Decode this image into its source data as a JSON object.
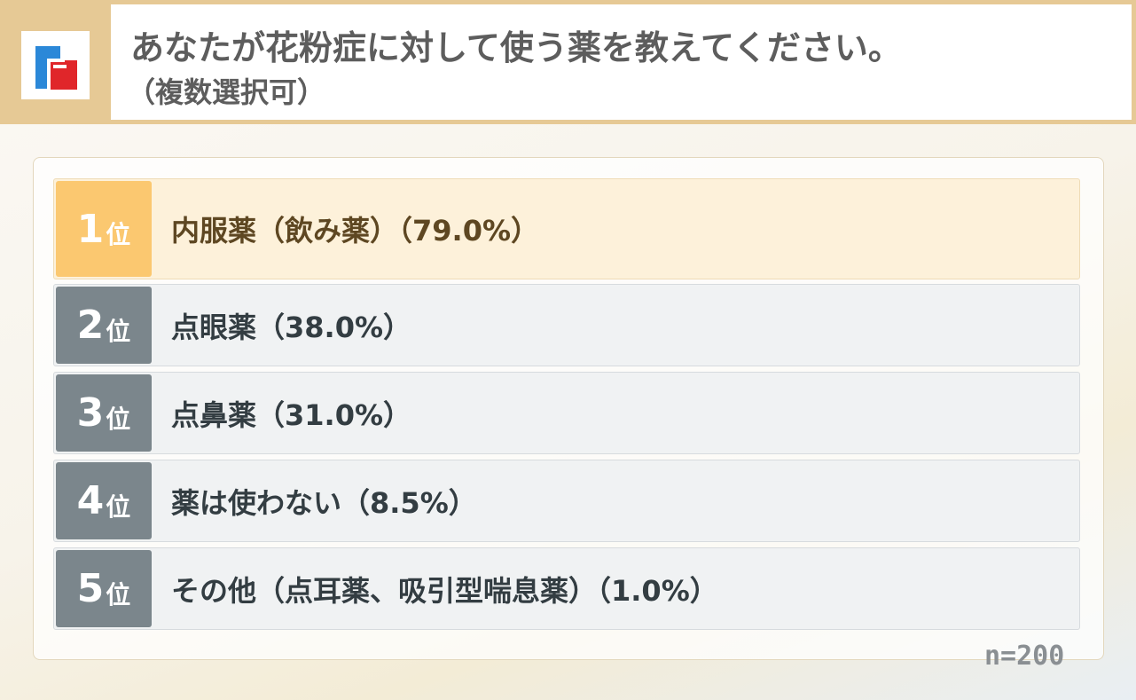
{
  "header": {
    "title": "あなたが花粉症に対して使う薬を教えてください。",
    "subtitle": "（複数選択可）"
  },
  "logo": {
    "colors": [
      "#2b88d8",
      "#e0262a"
    ]
  },
  "ranking": [
    {
      "rank": "1",
      "unit": "位",
      "label": "内服薬（飲み薬）（79.0%）"
    },
    {
      "rank": "2",
      "unit": "位",
      "label": "点眼薬（38.0%）"
    },
    {
      "rank": "3",
      "unit": "位",
      "label": "点鼻薬（31.0%）"
    },
    {
      "rank": "4",
      "unit": "位",
      "label": "薬は使わない（8.5%）"
    },
    {
      "rank": "5",
      "unit": "位",
      "label": "その他（点耳薬、吸引型喘息薬）（1.0%）"
    }
  ],
  "sample": "n=200"
}
